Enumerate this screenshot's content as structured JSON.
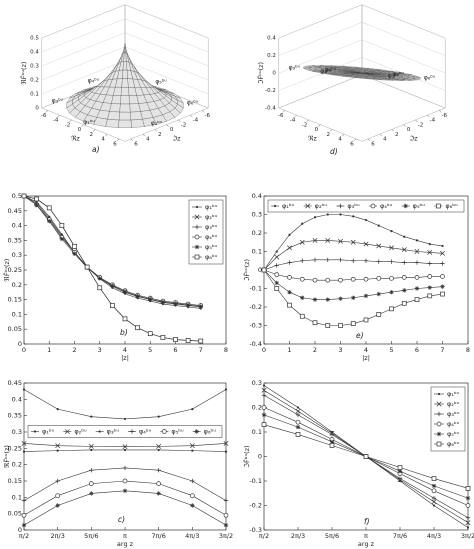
{
  "chart_data": [
    {
      "type": "surface3d",
      "panel_label": "a)",
      "xlabel": "ℜz",
      "ylabel": "ℑz",
      "zlabel": "ℜF̃ᵇᵘ(z)",
      "xlim": [
        -7,
        7
      ],
      "ylim": [
        -7,
        7
      ],
      "zlim": [
        0,
        0.5
      ],
      "xticks": [
        -6,
        -4,
        -2,
        0,
        2,
        4,
        6
      ],
      "yticks": [
        -6,
        -4,
        -2,
        0,
        2,
        4,
        6
      ],
      "zticks": [
        0,
        0.1,
        0.2,
        0.3,
        0.4,
        0.5
      ],
      "annotations": [
        "φ₁ᵇᵘ",
        "φ₂ᵇᵘ",
        "φ₃ᵇᵘ",
        "φ₄ᵇᵘ",
        "φ₅ᵇᵘ",
        "φ₆ᵇᵘ"
      ]
    },
    {
      "type": "surface3d",
      "panel_label": "d)",
      "xlabel": "ℜz",
      "ylabel": "ℑz",
      "zlabel": "ℑF̃ᵇᵘ(z)",
      "xlim": [
        -7,
        7
      ],
      "ylim": [
        -7,
        7
      ],
      "zlim": [
        -0.4,
        0.4
      ],
      "xticks": [
        -6,
        -4,
        -2,
        0,
        2,
        4,
        6
      ],
      "yticks": [
        -6,
        -4,
        -2,
        0,
        2,
        4,
        6
      ],
      "zticks": [
        -0.4,
        -0.2,
        0,
        0.2,
        0.4
      ],
      "annotations": [
        "φ₁ᵇᵘ",
        "φ₂ᵇᵘ",
        "φ₃ᵇᵘ",
        "φ₄ᵇᵘ",
        "φ₅ᵇᵘ",
        "φ₆ᵇᵘ"
      ]
    },
    {
      "type": "line",
      "panel_label": "b)",
      "xlabel": "|z|",
      "ylabel": "ℜF̃ᵇᵘ(z)",
      "xlim": [
        0,
        8
      ],
      "ylim": [
        0,
        0.5
      ],
      "xticks": [
        0,
        1,
        2,
        3,
        4,
        5,
        6,
        7,
        8
      ],
      "yticks": [
        0,
        0.05,
        0.1,
        0.15,
        0.2,
        0.25,
        0.3,
        0.35,
        0.4,
        0.45,
        0.5
      ],
      "legend": "upper right",
      "x": [
        0,
        0.5,
        1,
        1.5,
        2,
        2.5,
        3,
        3.5,
        4,
        4.5,
        5,
        5.5,
        6,
        6.5,
        7
      ],
      "series": [
        {
          "name": "φ₁ᵇᵘ",
          "color": "#333333",
          "marker": ".",
          "values": [
            0.5,
            0.48,
            0.43,
            0.37,
            0.31,
            0.26,
            0.22,
            0.19,
            0.17,
            0.155,
            0.145,
            0.135,
            0.13,
            0.125,
            0.12
          ]
        },
        {
          "name": "φ₂ᵇᵘ",
          "color": "#333333",
          "marker": "x",
          "values": [
            0.5,
            0.49,
            0.46,
            0.4,
            0.33,
            0.26,
            0.19,
            0.13,
            0.085,
            0.055,
            0.035,
            0.022,
            0.015,
            0.012,
            0.01
          ]
        },
        {
          "name": "φ₃ᵇᵘ",
          "color": "#333333",
          "marker": "+",
          "values": [
            0.5,
            0.475,
            0.425,
            0.365,
            0.31,
            0.26,
            0.222,
            0.195,
            0.175,
            0.16,
            0.15,
            0.14,
            0.135,
            0.13,
            0.125
          ]
        },
        {
          "name": "φ₄ᵇᵘ",
          "color": "#333333",
          "marker": "o",
          "values": [
            0.5,
            0.47,
            0.42,
            0.36,
            0.31,
            0.26,
            0.225,
            0.2,
            0.18,
            0.165,
            0.155,
            0.145,
            0.14,
            0.135,
            0.13
          ]
        },
        {
          "name": "φ₅ᵇᵘ",
          "color": "#333333",
          "marker": "*",
          "values": [
            0.5,
            0.47,
            0.415,
            0.355,
            0.305,
            0.258,
            0.222,
            0.197,
            0.177,
            0.162,
            0.152,
            0.142,
            0.137,
            0.132,
            0.127
          ]
        },
        {
          "name": "φ₆ᵇᵘ",
          "color": "#333333",
          "marker": "s",
          "values": [
            0.5,
            0.49,
            0.46,
            0.4,
            0.33,
            0.26,
            0.19,
            0.13,
            0.085,
            0.055,
            0.035,
            0.022,
            0.015,
            0.012,
            0.01
          ]
        }
      ]
    },
    {
      "type": "line",
      "panel_label": "e)",
      "xlabel": "|z|",
      "ylabel": "ℑF̃ᵇᵘ(z)",
      "xlim": [
        0,
        8
      ],
      "ylim": [
        -0.4,
        0.4
      ],
      "xticks": [
        0,
        1,
        2,
        3,
        4,
        5,
        6,
        7,
        8
      ],
      "yticks": [
        -0.4,
        -0.3,
        -0.2,
        -0.1,
        0,
        0.1,
        0.2,
        0.3,
        0.4
      ],
      "legend": "upper center",
      "x": [
        0,
        0.5,
        1,
        1.5,
        2,
        2.5,
        3,
        3.5,
        4,
        4.5,
        5,
        5.5,
        6,
        6.5,
        7
      ],
      "series": [
        {
          "name": "φ₁ᵇᵘ",
          "color": "#333333",
          "marker": ".",
          "values": [
            0,
            0.1,
            0.19,
            0.25,
            0.285,
            0.3,
            0.3,
            0.29,
            0.27,
            0.24,
            0.21,
            0.18,
            0.16,
            0.14,
            0.13
          ]
        },
        {
          "name": "φ₂ᵇᵘ",
          "color": "#333333",
          "marker": "x",
          "values": [
            0,
            0.07,
            0.12,
            0.15,
            0.16,
            0.16,
            0.155,
            0.15,
            0.14,
            0.13,
            0.12,
            0.11,
            0.1,
            0.095,
            0.09
          ]
        },
        {
          "name": "φ₃ᵇᵘ",
          "color": "#333333",
          "marker": "+",
          "values": [
            0,
            0.025,
            0.04,
            0.05,
            0.055,
            0.055,
            0.055,
            0.05,
            0.05,
            0.045,
            0.045,
            0.04,
            0.04,
            0.035,
            0.035
          ]
        },
        {
          "name": "φ₄ᵇᵘ",
          "color": "#333333",
          "marker": "o",
          "values": [
            0,
            -0.025,
            -0.04,
            -0.05,
            -0.055,
            -0.055,
            -0.055,
            -0.05,
            -0.05,
            -0.045,
            -0.045,
            -0.04,
            -0.04,
            -0.035,
            -0.035
          ]
        },
        {
          "name": "φ₅ᵇᵘ",
          "color": "#333333",
          "marker": "*",
          "values": [
            0,
            -0.07,
            -0.12,
            -0.15,
            -0.16,
            -0.16,
            -0.155,
            -0.15,
            -0.14,
            -0.13,
            -0.12,
            -0.11,
            -0.1,
            -0.095,
            -0.09
          ]
        },
        {
          "name": "φ₆ᵇᵘ",
          "color": "#333333",
          "marker": "s",
          "values": [
            0,
            -0.1,
            -0.19,
            -0.25,
            -0.285,
            -0.3,
            -0.3,
            -0.29,
            -0.27,
            -0.24,
            -0.21,
            -0.18,
            -0.16,
            -0.14,
            -0.13
          ]
        }
      ]
    },
    {
      "type": "line",
      "panel_label": "c)",
      "xlabel": "arg z",
      "ylabel": "ℜF̃ᵇᵘ(z)",
      "xlim": [
        1.5708,
        4.7124
      ],
      "ylim": [
        0,
        0.45
      ],
      "xticks": [
        {
          "value": 1.5708,
          "label": "π/2"
        },
        {
          "value": 2.0944,
          "label": "2π/3"
        },
        {
          "value": 2.618,
          "label": "5π/6"
        },
        {
          "value": 3.1416,
          "label": "π"
        },
        {
          "value": 3.6652,
          "label": "7π/6"
        },
        {
          "value": 4.1888,
          "label": "4π/3"
        },
        {
          "value": 4.7124,
          "label": "3π/2"
        }
      ],
      "yticks": [
        0,
        0.05,
        0.1,
        0.15,
        0.2,
        0.25,
        0.3,
        0.35,
        0.4,
        0.45
      ],
      "legend": "center",
      "x": [
        1.5708,
        2.0944,
        2.618,
        3.1416,
        3.6652,
        4.1888,
        4.7124
      ],
      "series": [
        {
          "name": "φ₁ᵇᵘ",
          "color": "#333333",
          "marker": ".",
          "values": [
            0.43,
            0.37,
            0.347,
            0.34,
            0.347,
            0.37,
            0.43
          ]
        },
        {
          "name": "φ₂ᵇᵘ",
          "color": "#333333",
          "marker": "x",
          "values": [
            0.265,
            0.258,
            0.256,
            0.255,
            0.256,
            0.258,
            0.265
          ]
        },
        {
          "name": "φ₃ᵇᵘ",
          "color": "#333333",
          "marker": ".",
          "values": [
            0.24,
            0.243,
            0.245,
            0.245,
            0.245,
            0.243,
            0.24
          ]
        },
        {
          "name": "φ₄ᵇᵘ",
          "color": "#333333",
          "marker": "+",
          "values": [
            0.09,
            0.15,
            0.183,
            0.19,
            0.183,
            0.15,
            0.09
          ]
        },
        {
          "name": "φ₅ᵇᵘ",
          "color": "#333333",
          "marker": "o",
          "values": [
            0.045,
            0.105,
            0.142,
            0.15,
            0.142,
            0.105,
            0.045
          ]
        },
        {
          "name": "φ₆ᵇᵘ",
          "color": "#333333",
          "marker": "*",
          "values": [
            0.015,
            0.075,
            0.112,
            0.12,
            0.112,
            0.075,
            0.015
          ]
        }
      ]
    },
    {
      "type": "line",
      "panel_label": "f)",
      "xlabel": "arg z",
      "ylabel": "ℑF̃ᵇᵘ(z)",
      "xlim": [
        1.5708,
        4.7124
      ],
      "ylim": [
        -0.3,
        0.3
      ],
      "xticks": [
        {
          "value": 1.5708,
          "label": "π/2"
        },
        {
          "value": 2.0944,
          "label": "2π/3"
        },
        {
          "value": 2.618,
          "label": "5π/6"
        },
        {
          "value": 3.1416,
          "label": "π"
        },
        {
          "value": 3.6652,
          "label": "7π/6"
        },
        {
          "value": 4.1888,
          "label": "4π/3"
        },
        {
          "value": 4.7124,
          "label": "3π/2"
        }
      ],
      "yticks": [
        -0.3,
        -0.2,
        -0.1,
        0,
        0.1,
        0.2,
        0.3
      ],
      "legend": "upper right",
      "x": [
        1.5708,
        2.0944,
        2.618,
        3.1416,
        3.6652,
        4.1888,
        4.7124
      ],
      "series": [
        {
          "name": "φ₁ᵇᵘ",
          "color": "#333333",
          "marker": ".",
          "values": [
            0.29,
            0.2,
            0.1,
            0,
            -0.1,
            -0.2,
            -0.29
          ]
        },
        {
          "name": "φ₂ᵇᵘ",
          "color": "#333333",
          "marker": "x",
          "values": [
            0.27,
            0.185,
            0.095,
            0,
            -0.095,
            -0.185,
            -0.27
          ]
        },
        {
          "name": "φ₃ᵇᵘ",
          "color": "#333333",
          "marker": "+",
          "values": [
            0.25,
            0.17,
            0.09,
            0,
            -0.09,
            -0.17,
            -0.25
          ]
        },
        {
          "name": "φ₄ᵇᵘ",
          "color": "#333333",
          "marker": "o",
          "values": [
            0.2,
            0.14,
            0.07,
            0,
            -0.07,
            -0.14,
            -0.2
          ]
        },
        {
          "name": "φ₅ᵇᵘ",
          "color": "#333333",
          "marker": "*",
          "values": [
            0.17,
            0.12,
            0.06,
            0,
            -0.06,
            -0.12,
            -0.17
          ]
        },
        {
          "name": "φ₆ᵇᵘ",
          "color": "#333333",
          "marker": "s",
          "values": [
            0.13,
            0.09,
            0.045,
            0,
            -0.045,
            -0.09,
            -0.13
          ]
        }
      ]
    }
  ]
}
